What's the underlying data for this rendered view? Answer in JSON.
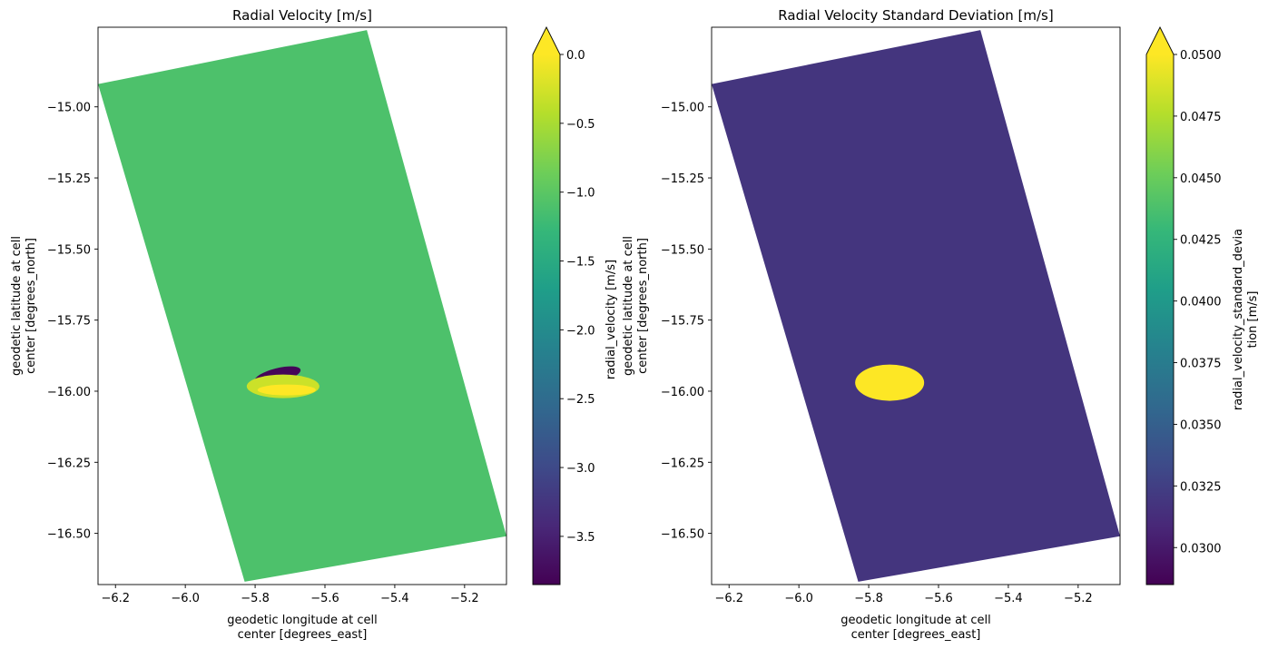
{
  "chart_data": [
    {
      "type": "heatmap",
      "title": "Radial Velocity [m/s]",
      "xlabel": [
        "geodetic longitude at cell",
        "center [degrees_east]"
      ],
      "ylabel": [
        "geodetic latitude at cell",
        "center [degrees_north]"
      ],
      "xlim": [
        -6.25,
        -5.08
      ],
      "ylim": [
        -16.68,
        -14.72
      ],
      "xticks": [
        -6.2,
        -6.0,
        -5.8,
        -5.6,
        -5.4,
        -5.2
      ],
      "xtick_labels": [
        "−6.2",
        "−6.0",
        "−5.8",
        "−5.6",
        "−5.4",
        "−5.2"
      ],
      "yticks": [
        -15.0,
        -15.25,
        -15.5,
        -15.75,
        -16.0,
        -16.25,
        -16.5
      ],
      "ytick_labels": [
        "−15.00",
        "−15.25",
        "−15.50",
        "−15.75",
        "−16.00",
        "−16.25",
        "−16.50"
      ],
      "swath_corners": [
        [
          -5.48,
          -14.73
        ],
        [
          -5.08,
          -16.51
        ],
        [
          -5.83,
          -16.67
        ],
        [
          -6.25,
          -14.92
        ]
      ],
      "background_value": -1.1,
      "anomaly": {
        "center": [
          -5.72,
          -15.97
        ],
        "min_value": -3.8,
        "max_value": 0.0
      },
      "colorbar": {
        "label": "radial_velocity [m/s]",
        "vmin": -3.85,
        "vmax": 0.0,
        "extend": "max",
        "ticks": [
          0.0,
          -0.5,
          -1.0,
          -1.5,
          -2.0,
          -2.5,
          -3.0,
          -3.5
        ],
        "tick_labels": [
          "0.0",
          "−0.5",
          "−1.0",
          "−1.5",
          "−2.0",
          "−2.5",
          "−3.0",
          "−3.5"
        ]
      }
    },
    {
      "type": "heatmap",
      "title": "Radial Velocity Standard Deviation [m/s]",
      "xlabel": [
        "geodetic longitude at cell",
        "center [degrees_east]"
      ],
      "ylabel": [
        "geodetic latitude at cell",
        "center [degrees_north]"
      ],
      "xlim": [
        -6.25,
        -5.08
      ],
      "ylim": [
        -16.68,
        -14.72
      ],
      "xticks": [
        -6.2,
        -6.0,
        -5.8,
        -5.6,
        -5.4,
        -5.2
      ],
      "xtick_labels": [
        "−6.2",
        "−6.0",
        "−5.8",
        "−5.6",
        "−5.4",
        "−5.2"
      ],
      "yticks": [
        -15.0,
        -15.25,
        -15.5,
        -15.75,
        -16.0,
        -16.25,
        -16.5
      ],
      "ytick_labels": [
        "−15.00",
        "−15.25",
        "−15.50",
        "−15.75",
        "−16.00",
        "−16.25",
        "−16.50"
      ],
      "swath_corners": [
        [
          -5.48,
          -14.73
        ],
        [
          -5.08,
          -16.51
        ],
        [
          -5.83,
          -16.67
        ],
        [
          -6.25,
          -14.92
        ]
      ],
      "background_value": 0.0318,
      "anomaly": {
        "center": [
          -5.74,
          -15.97
        ],
        "value": 0.05
      },
      "colorbar": {
        "label": [
          "radial_velocity_standard_devia",
          "tion [m/s]"
        ],
        "vmin": 0.0285,
        "vmax": 0.05,
        "extend": "max",
        "ticks": [
          0.05,
          0.0475,
          0.045,
          0.0425,
          0.04,
          0.0375,
          0.035,
          0.0325,
          0.03
        ],
        "tick_labels": [
          "0.0500",
          "0.0475",
          "0.0450",
          "0.0425",
          "0.0400",
          "0.0375",
          "0.0350",
          "0.0325",
          "0.0300"
        ]
      }
    }
  ],
  "colors": {
    "viridis": [
      "#440154",
      "#482878",
      "#3e4a89",
      "#31688e",
      "#26828e",
      "#1f9e89",
      "#35b779",
      "#6ece58",
      "#b5de2b",
      "#fde725"
    ]
  }
}
